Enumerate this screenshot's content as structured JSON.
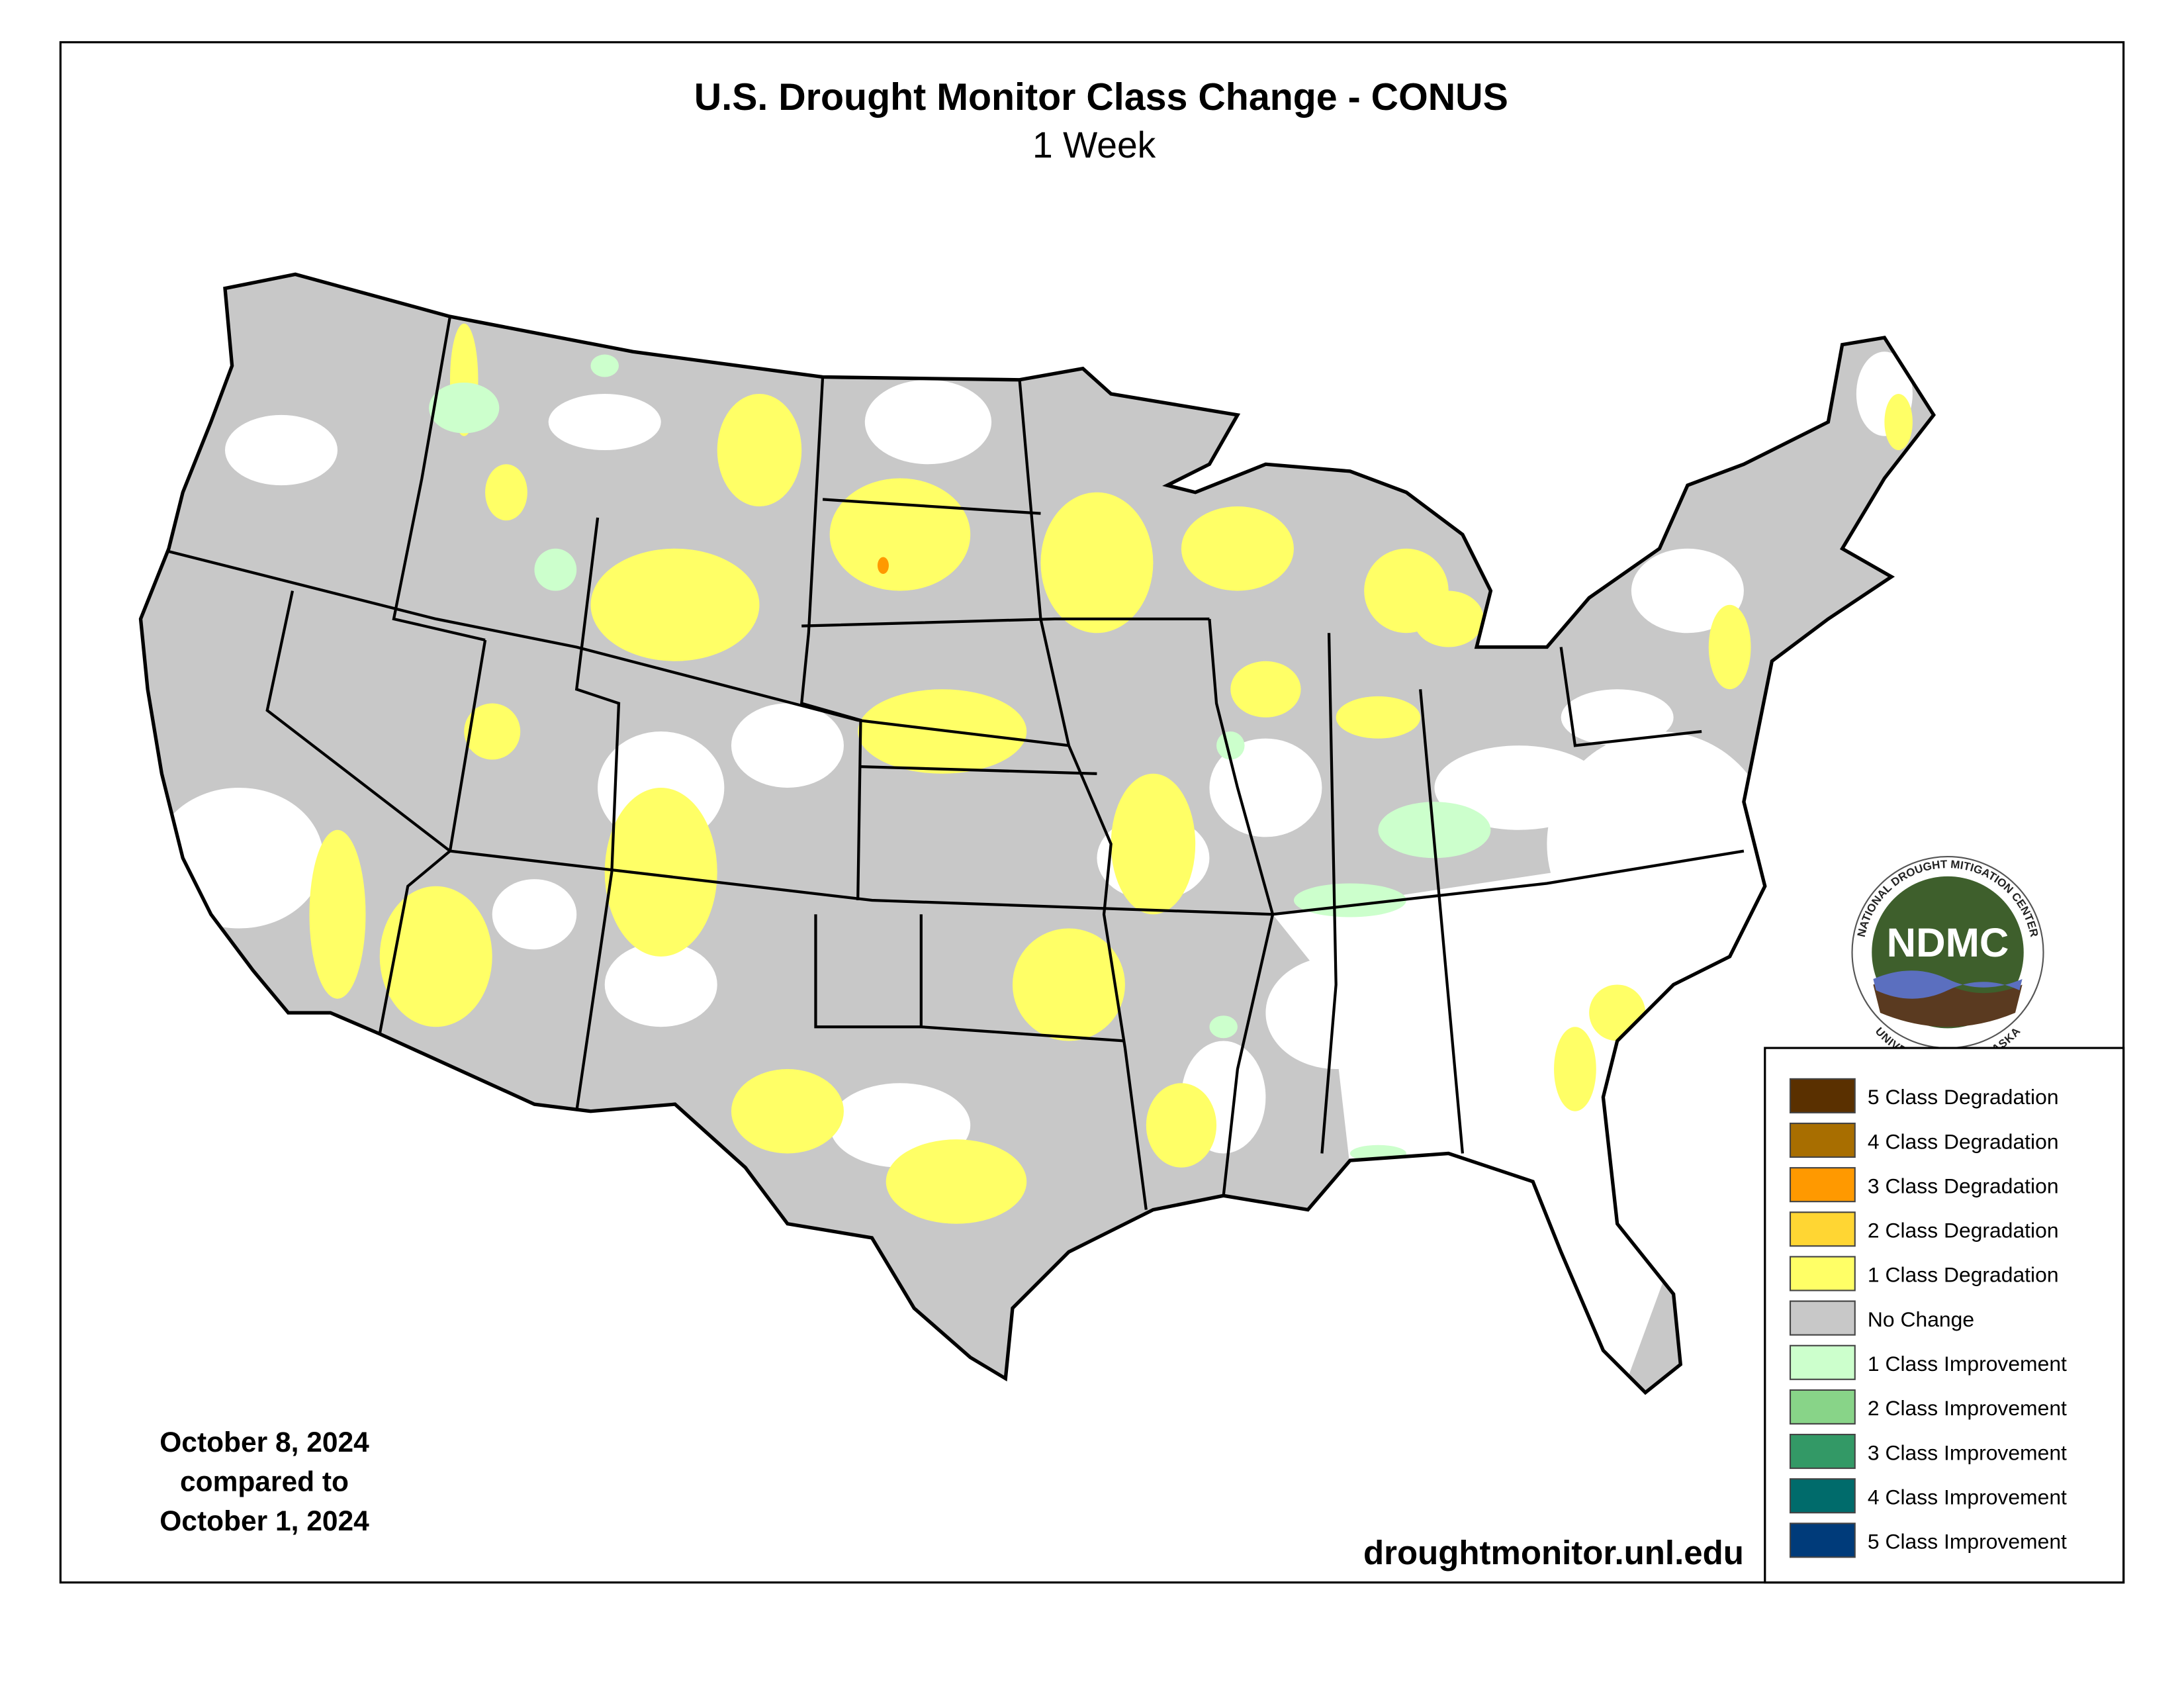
{
  "title": "U.S. Drought Monitor Class Change - CONUS",
  "subtitle": "1 Week",
  "date_lines": [
    "October 8, 2024",
    "compared to",
    "October 1, 2024"
  ],
  "url": "droughtmonitor.unl.edu",
  "logo": {
    "acronym": "NDMC",
    "top_text": "NATIONAL DROUGHT MITIGATION CENTER",
    "bottom_text": "UNIVERSITY OF NEBRASKA"
  },
  "legend": {
    "items": [
      {
        "label": "5 Class Degradation",
        "color": "#5a3000"
      },
      {
        "label": "4 Class Degradation",
        "color": "#a86e00"
      },
      {
        "label": "3 Class Degradation",
        "color": "#ff9900"
      },
      {
        "label": "2 Class Degradation",
        "color": "#ffd633"
      },
      {
        "label": "1 Class Degradation",
        "color": "#ffff66"
      },
      {
        "label": "No Change",
        "color": "#c8c8c8"
      },
      {
        "label": "1 Class Improvement",
        "color": "#ccffcc"
      },
      {
        "label": "2 Class Improvement",
        "color": "#88d488"
      },
      {
        "label": "3 Class Improvement",
        "color": "#339966"
      },
      {
        "label": "4 Class Improvement",
        "color": "#006b6b"
      },
      {
        "label": "5 Class Improvement",
        "color": "#003b7a"
      }
    ]
  }
}
